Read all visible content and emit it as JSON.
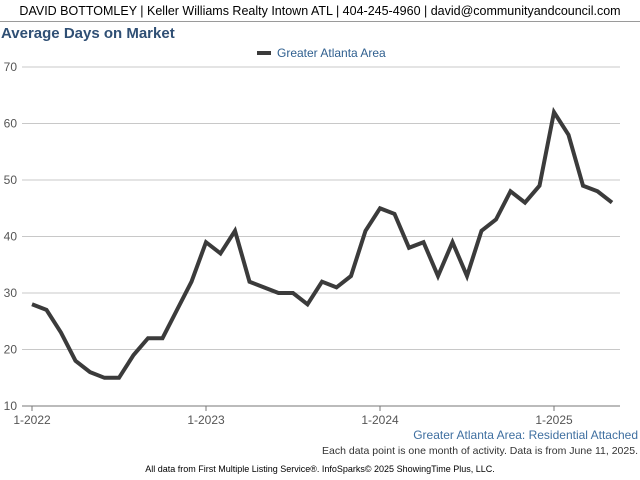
{
  "header": {
    "agent_info": "DAVID BOTTOMLEY | Keller Williams Realty Intown ATL | 404-245-4960 | david@communityandcouncil.com"
  },
  "chart_data": {
    "type": "line",
    "title": "Average Days on Market",
    "xlabel": "",
    "ylabel": "",
    "ylim": [
      10,
      70
    ],
    "y_ticks": [
      10,
      20,
      30,
      40,
      50,
      60,
      70
    ],
    "x_ticks": [
      "1-2022",
      "1-2023",
      "1-2024",
      "1-2025"
    ],
    "grid": true,
    "legend_position": "top-center",
    "x": [
      "1-2022",
      "2-2022",
      "3-2022",
      "4-2022",
      "5-2022",
      "6-2022",
      "7-2022",
      "8-2022",
      "9-2022",
      "10-2022",
      "11-2022",
      "12-2022",
      "1-2023",
      "2-2023",
      "3-2023",
      "4-2023",
      "5-2023",
      "6-2023",
      "7-2023",
      "8-2023",
      "9-2023",
      "10-2023",
      "11-2023",
      "12-2023",
      "1-2024",
      "2-2024",
      "3-2024",
      "4-2024",
      "5-2024",
      "6-2024",
      "7-2024",
      "8-2024",
      "9-2024",
      "10-2024",
      "11-2024",
      "12-2024",
      "1-2025",
      "2-2025",
      "3-2025",
      "4-2025",
      "5-2025"
    ],
    "series": [
      {
        "name": "Greater Atlanta Area",
        "color": "#3b3b3b",
        "values": [
          28,
          27,
          23,
          18,
          16,
          15,
          15,
          19,
          22,
          22,
          27,
          32,
          39,
          37,
          41,
          32,
          31,
          30,
          30,
          28,
          32,
          31,
          33,
          41,
          45,
          44,
          38,
          39,
          33,
          39,
          33,
          41,
          43,
          48,
          46,
          49,
          62,
          58,
          49,
          48,
          46
        ]
      }
    ]
  },
  "footer": {
    "series_label": "Greater Atlanta Area: Residential Attached",
    "note": "Each data point is one month of activity. Data is from June 11, 2025.",
    "credits": "All data from First Multiple Listing Service®. InfoSparks© 2025 ShowingTime Plus, LLC."
  }
}
